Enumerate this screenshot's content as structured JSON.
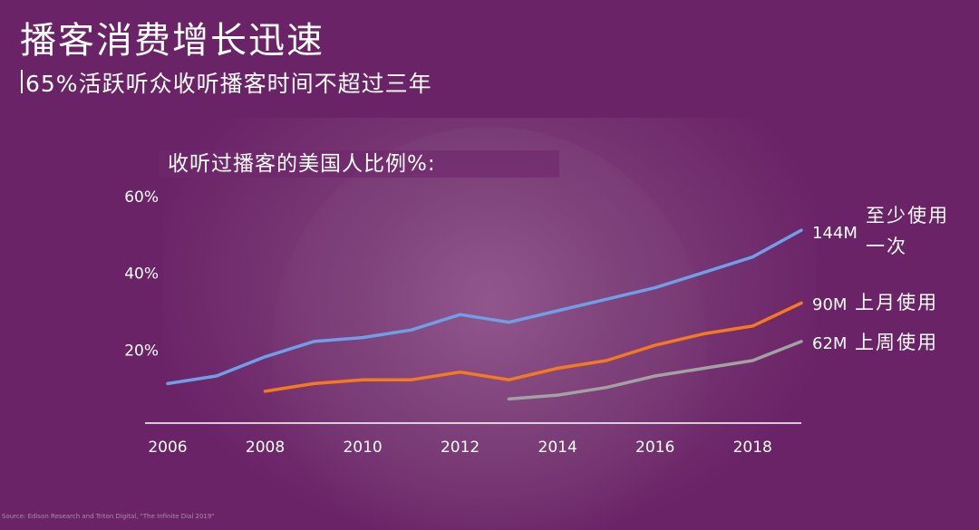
{
  "header": {
    "title": "播客消费增长迅速",
    "subtitle": "65%活跃听众收听播客时间不超过三年"
  },
  "chart_heading": "收听过播客的美国人比例%:",
  "source_note": "Source: Edison Research and Triton Digital, \"The Infinite Dial 2019\"",
  "colors": {
    "background": "#6a2367",
    "series_at_least_once": "#6f9fe6",
    "series_monthly": "#f47a1f",
    "series_weekly": "#a2a2a2",
    "axis": "#ffffff"
  },
  "chart_data": {
    "type": "line",
    "title": "收听过播客的美国人比例%:",
    "xlabel": "",
    "ylabel": "",
    "xlim": [
      2006,
      2019
    ],
    "ylim": [
      0,
      60
    ],
    "x_ticks": [
      "2006",
      "2008",
      "2010",
      "2012",
      "2014",
      "2016",
      "2018"
    ],
    "y_ticks": [
      "20%",
      "40%",
      "60%"
    ],
    "grid": false,
    "series": [
      {
        "key": "at_least_once",
        "color": "#6f9fe6",
        "end_value_label": "144M",
        "end_text": [
          "至少使用",
          "一次"
        ],
        "x": [
          2006,
          2007,
          2008,
          2009,
          2010,
          2011,
          2012,
          2013,
          2014,
          2015,
          2016,
          2017,
          2018,
          2019
        ],
        "values": [
          11,
          13,
          18,
          22,
          23,
          25,
          29,
          27,
          30,
          33,
          36,
          40,
          44,
          51
        ]
      },
      {
        "key": "monthly",
        "color": "#f47a1f",
        "end_value_label": "90M",
        "end_text": [
          "上月使用"
        ],
        "x": [
          2008,
          2009,
          2010,
          2011,
          2012,
          2013,
          2014,
          2015,
          2016,
          2017,
          2018,
          2019
        ],
        "values": [
          9,
          11,
          12,
          12,
          14,
          12,
          15,
          17,
          21,
          24,
          26,
          32
        ]
      },
      {
        "key": "weekly",
        "color": "#a2a2a2",
        "end_value_label": "62M",
        "end_text": [
          "上周使用"
        ],
        "x": [
          2013,
          2014,
          2015,
          2016,
          2017,
          2018,
          2019
        ],
        "values": [
          7,
          8,
          10,
          13,
          15,
          17,
          22
        ]
      }
    ]
  }
}
